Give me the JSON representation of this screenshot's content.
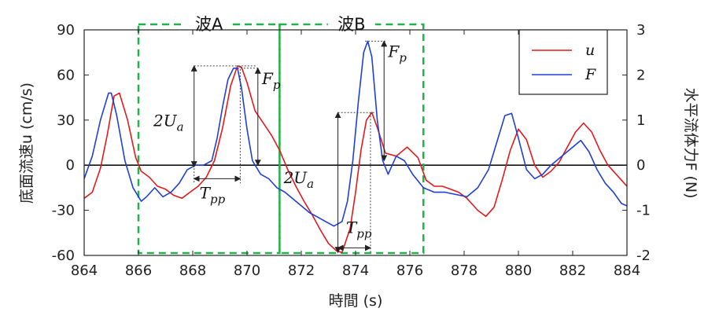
{
  "chart_data": {
    "type": "line",
    "xlabel": "時間 (s)",
    "ylabel_left": "底面流速u (cm/s)",
    "ylabel_right": "水平流体力F (N)",
    "xlim": [
      864,
      884
    ],
    "ylim_left": [
      -60,
      90
    ],
    "ylim_right": [
      -2,
      3
    ],
    "xticks": [
      "864",
      "866",
      "868",
      "870",
      "872",
      "874",
      "876",
      "878",
      "880",
      "882",
      "884"
    ],
    "yticks_left": [
      "90",
      "60",
      "30",
      "0",
      "-30",
      "-60"
    ],
    "yticks_right": [
      "3",
      "2",
      "1",
      "0",
      "-1",
      "-2"
    ],
    "legend": {
      "position": "top-right",
      "entries": [
        "u",
        "F"
      ]
    },
    "colors": {
      "u": "#e31a1c",
      "F": "#1f3fd6",
      "boxes": "#22b24c"
    },
    "series": [
      {
        "name": "u",
        "axis": "left",
        "x": [
          864.0,
          864.3,
          864.6,
          864.85,
          865.1,
          865.3,
          865.6,
          865.9,
          866.1,
          866.4,
          866.7,
          867.0,
          867.3,
          867.6,
          867.9,
          868.2,
          868.5,
          868.8,
          869.1,
          869.4,
          869.65,
          869.8,
          870.0,
          870.3,
          870.6,
          870.9,
          871.2,
          871.5,
          871.8,
          872.1,
          872.4,
          872.7,
          873.0,
          873.3,
          873.5,
          873.8,
          874.0,
          874.2,
          874.4,
          874.6,
          874.8,
          875.1,
          875.5,
          875.9,
          876.3,
          876.6,
          876.9,
          877.2,
          877.5,
          877.8,
          878.1,
          878.5,
          878.8,
          879.1,
          879.4,
          879.7,
          880.0,
          880.3,
          880.6,
          880.9,
          881.2,
          881.5,
          881.8,
          882.1,
          882.4,
          882.7,
          883.0,
          883.3,
          883.6,
          883.9,
          884.0
        ],
        "y": [
          -22,
          -18,
          -2,
          20,
          46,
          48,
          30,
          5,
          -4,
          -8,
          -14,
          -16,
          -20,
          -22,
          -18,
          -14,
          -8,
          3,
          25,
          53,
          66,
          65,
          55,
          36,
          28,
          20,
          10,
          -3,
          -14,
          -24,
          -33,
          -43,
          -52,
          -57,
          -58,
          -42,
          -18,
          10,
          30,
          35,
          25,
          8,
          6,
          12,
          5,
          -10,
          -14,
          -14,
          -16,
          -18,
          -22,
          -30,
          -34,
          -28,
          -10,
          10,
          24,
          17,
          0,
          -8,
          -4,
          2,
          12,
          22,
          28,
          22,
          10,
          0,
          -6,
          -12,
          -14
        ]
      },
      {
        "name": "F",
        "axis": "right",
        "x": [
          864.0,
          864.3,
          864.6,
          864.9,
          865.0,
          865.2,
          865.5,
          865.8,
          866.1,
          866.3,
          866.6,
          866.9,
          867.2,
          867.5,
          867.8,
          868.1,
          868.4,
          868.7,
          868.9,
          869.1,
          869.3,
          869.5,
          869.65,
          869.8,
          870.0,
          870.2,
          870.5,
          870.8,
          871.1,
          871.4,
          871.7,
          872.0,
          872.3,
          872.6,
          872.9,
          873.2,
          873.5,
          873.7,
          873.9,
          874.1,
          874.3,
          874.45,
          874.6,
          874.8,
          875.0,
          875.2,
          875.5,
          875.8,
          876.1,
          876.5,
          876.9,
          877.3,
          877.7,
          878.1,
          878.5,
          878.9,
          879.2,
          879.5,
          879.75,
          880.0,
          880.3,
          880.6,
          880.9,
          881.2,
          881.6,
          882.0,
          882.3,
          882.6,
          882.9,
          883.2,
          883.5,
          883.8,
          884.0
        ],
        "y": [
          -0.3,
          0.2,
          1.0,
          1.6,
          1.6,
          1.1,
          0.1,
          -0.5,
          -0.8,
          -0.7,
          -0.5,
          -0.7,
          -0.6,
          -0.4,
          -0.1,
          0.0,
          0.0,
          0.1,
          0.6,
          1.3,
          1.9,
          2.15,
          2.15,
          1.7,
          0.8,
          0.1,
          -0.2,
          -0.3,
          -0.5,
          -0.6,
          -0.75,
          -0.9,
          -1.05,
          -1.15,
          -1.25,
          -1.35,
          -1.25,
          -0.8,
          0.1,
          1.4,
          2.5,
          2.75,
          2.4,
          1.0,
          0.1,
          -0.2,
          0.2,
          0.1,
          -0.2,
          -0.5,
          -0.6,
          -0.6,
          -0.65,
          -0.7,
          -0.5,
          -0.1,
          0.5,
          1.1,
          1.15,
          0.6,
          -0.1,
          -0.3,
          -0.2,
          0.0,
          0.2,
          0.4,
          0.55,
          0.3,
          -0.1,
          -0.4,
          -0.6,
          -0.85,
          -0.9
        ]
      }
    ],
    "wave_boxes": [
      {
        "label": "波A",
        "x_range": [
          866.0,
          871.2
        ]
      },
      {
        "label": "波B",
        "x_range": [
          871.2,
          876.5
        ]
      }
    ],
    "annotations": {
      "wave_a": {
        "two_ua": "2U",
        "two_ua_sub": "a",
        "tpp": "T",
        "tpp_sub": "pp",
        "fp": "F",
        "fp_sub": "p"
      },
      "wave_b": {
        "two_ua": "2U",
        "two_ua_sub": "a",
        "tpp": "T",
        "tpp_sub": "pp",
        "fp": "F",
        "fp_sub": "p"
      }
    }
  }
}
